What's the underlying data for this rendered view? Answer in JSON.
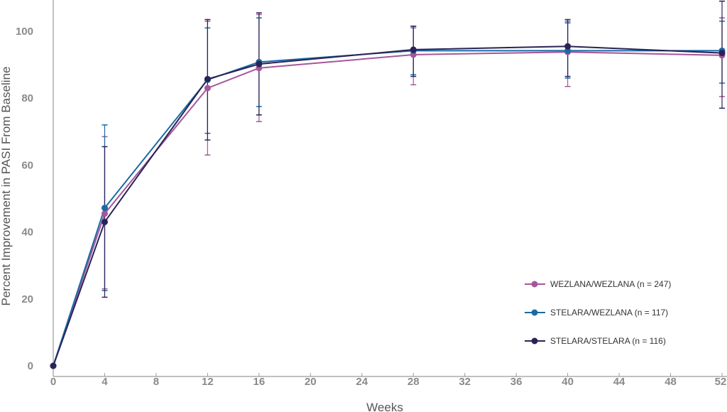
{
  "chart_data": {
    "type": "line",
    "title": "",
    "xlabel": "Weeks",
    "ylabel": "Percent Improvement in PASI From Baseline",
    "x_ticks": [
      0,
      4,
      8,
      12,
      16,
      20,
      24,
      28,
      32,
      36,
      40,
      44,
      48,
      52
    ],
    "y_ticks": [
      0,
      20,
      40,
      60,
      80,
      100
    ],
    "xlim": [
      0,
      52
    ],
    "ylim": [
      -2,
      108
    ],
    "grid": false,
    "legend_position": "bottom-right",
    "series": [
      {
        "name": "WEZLANA/WEZLANA (n = 247)",
        "color": "#a5579a",
        "x": [
          0,
          4,
          12,
          16,
          28,
          40,
          52
        ],
        "y": [
          0,
          45.5,
          83,
          89,
          93,
          93.8,
          92.8
        ],
        "err_low": [
          null,
          23,
          63,
          73,
          84,
          83.5,
          80.5
        ],
        "err_high": [
          null,
          68.5,
          103,
          105,
          101,
          103,
          104
        ]
      },
      {
        "name": "STELARA/WEZLANA (n = 117)",
        "color": "#1a6aa6",
        "x": [
          0,
          4,
          12,
          16,
          28,
          40,
          52
        ],
        "y": [
          0,
          47.2,
          85.5,
          90.8,
          94.2,
          94.2,
          94.2
        ],
        "err_low": [
          null,
          22.5,
          69.5,
          77.5,
          87,
          86,
          84.5
        ],
        "err_high": [
          null,
          72,
          101,
          104,
          101.5,
          102.5,
          103
        ]
      },
      {
        "name": "STELARA/STELARA (n = 116)",
        "color": "#2a2357",
        "x": [
          0,
          4,
          12,
          16,
          28,
          40,
          52
        ],
        "y": [
          0,
          43,
          85.7,
          90.2,
          94.5,
          95.5,
          93.5
        ],
        "err_low": [
          null,
          20.5,
          67.5,
          75,
          86.5,
          86.5,
          77
        ],
        "err_high": [
          null,
          65.5,
          103.5,
          105.5,
          101.5,
          103.5,
          109
        ]
      }
    ]
  }
}
